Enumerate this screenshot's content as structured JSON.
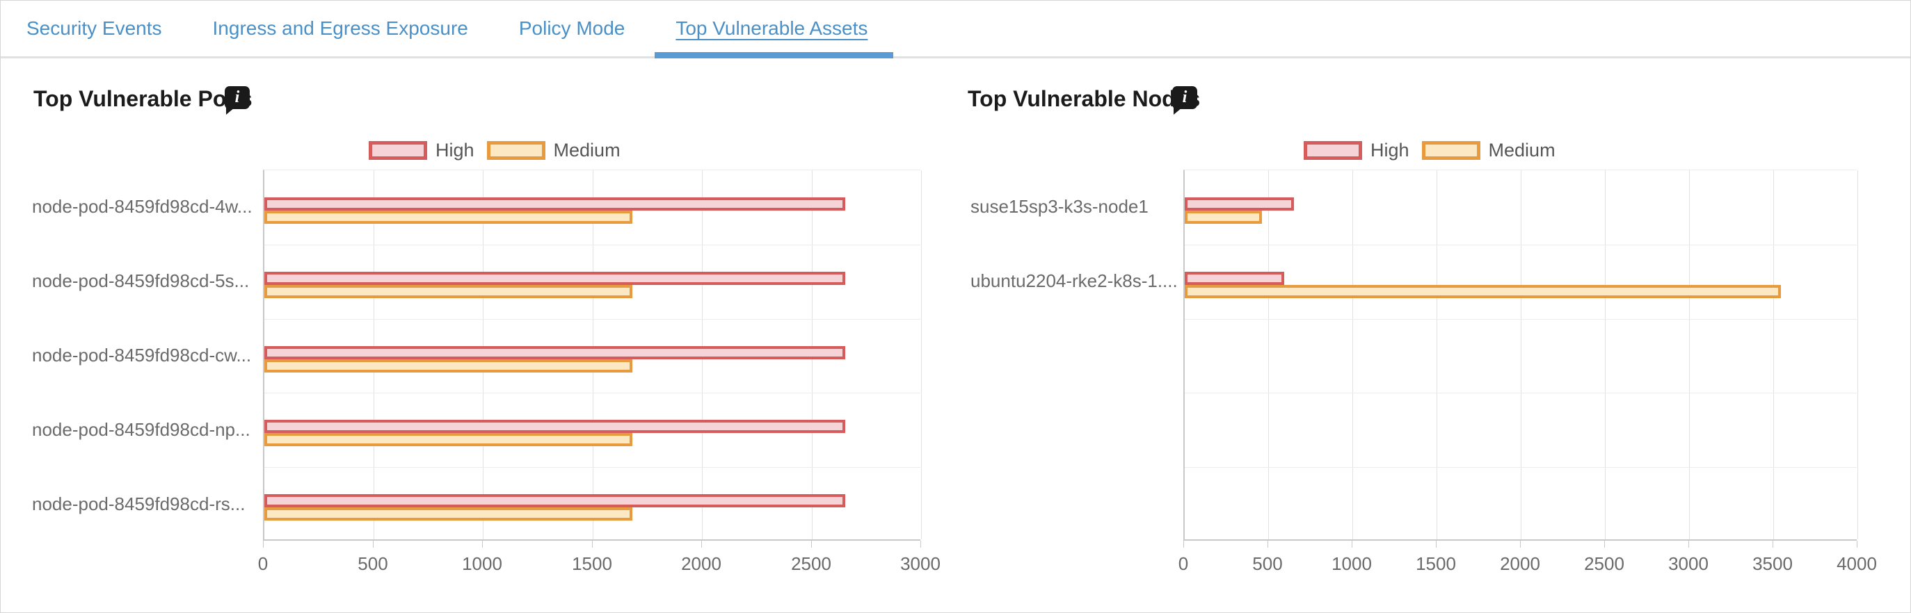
{
  "panel": {
    "tabs": [
      {
        "label": "Security Events",
        "active": false
      },
      {
        "label": "Ingress and Egress Exposure",
        "active": false
      },
      {
        "label": "Policy Mode",
        "active": false
      },
      {
        "label": "Top Vulnerable Assets",
        "active": true
      }
    ]
  },
  "icons": {
    "chart_info": "info-icon"
  },
  "colors": {
    "tab_text": "#4a90c7",
    "active_tab_underline": "#5b9bd5",
    "high_border": "#d65c5c",
    "high_fill": "#f5d3d6",
    "medium_border": "#e89b3e",
    "medium_fill": "#fce8c3",
    "axis_text": "#6a6a6a",
    "title_text": "#1b1b1b"
  },
  "chart_data": [
    {
      "type": "bar",
      "orientation": "horizontal",
      "title": "Top Vulnerable Pods",
      "categories": [
        "node-pod-8459fd98cd-4w...",
        "node-pod-8459fd98cd-5s...",
        "node-pod-8459fd98cd-cw...",
        "node-pod-8459fd98cd-np...",
        "node-pod-8459fd98cd-rs..."
      ],
      "series": [
        {
          "name": "High",
          "values": [
            2650,
            2650,
            2650,
            2650,
            2650
          ]
        },
        {
          "name": "Medium",
          "values": [
            1680,
            1680,
            1680,
            1680,
            1680
          ]
        }
      ],
      "xlim": [
        0,
        3000
      ],
      "xticks": [
        0,
        500,
        1000,
        1500,
        2000,
        2500,
        3000
      ],
      "legend_position": "top",
      "grid": true
    },
    {
      "type": "bar",
      "orientation": "horizontal",
      "title": "Top Vulnerable Nodes",
      "categories": [
        "suse15sp3-k3s-node1",
        "ubuntu2204-rke2-k8s-1...."
      ],
      "series": [
        {
          "name": "High",
          "values": [
            650,
            590
          ]
        },
        {
          "name": "Medium",
          "values": [
            460,
            3540
          ]
        }
      ],
      "xlim": [
        0,
        4000
      ],
      "xticks": [
        0,
        500,
        1000,
        1500,
        2000,
        2500,
        3000,
        3500,
        4000
      ],
      "legend_position": "top",
      "grid": true
    }
  ]
}
